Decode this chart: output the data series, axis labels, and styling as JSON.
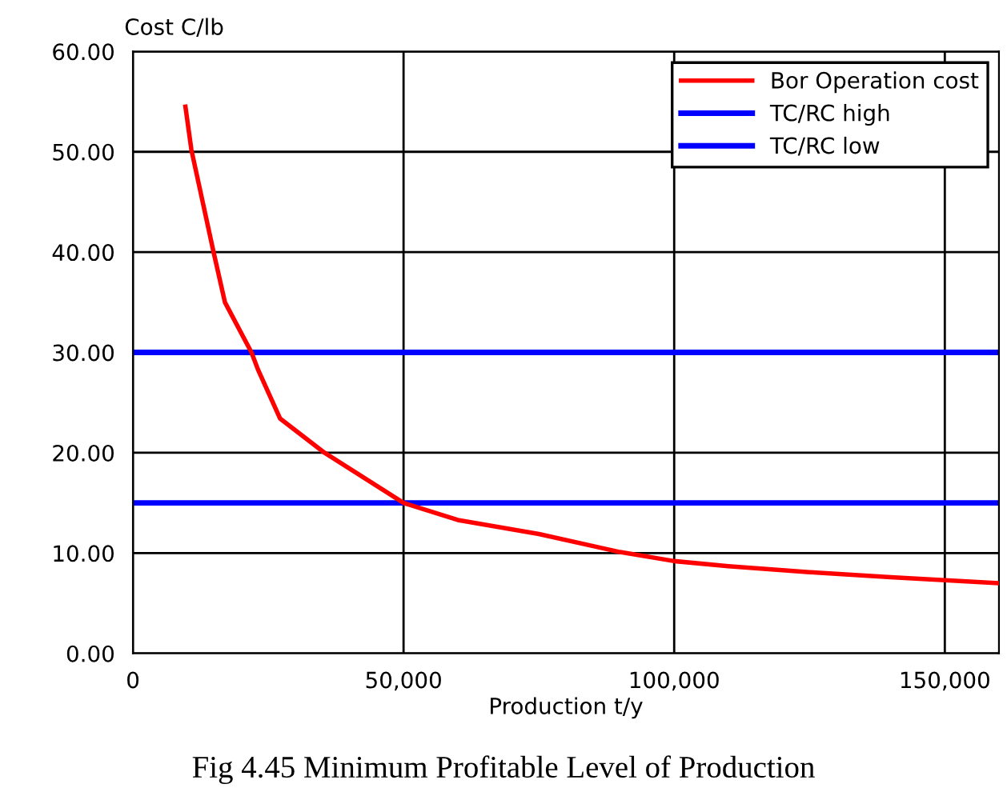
{
  "chart_data": {
    "type": "line",
    "ylabel": "Cost C/lb",
    "xlabel": "Production t/y",
    "annotations": [
      "Fig 4.45 Minimum Profitable Level of Production"
    ],
    "series": [
      {
        "name": "Bor Operation cost",
        "color": "#ff0000",
        "x": [
          9700,
          10800,
          14900,
          17000,
          21900,
          23100,
          27200,
          35400,
          50000,
          60000,
          75000,
          90000,
          100000,
          110000,
          125000,
          140000,
          150000,
          160000
        ],
        "values": [
          54.5,
          50.2,
          40,
          35,
          30,
          28.3,
          23.4,
          20,
          15,
          13.3,
          11.9,
          10.1,
          9.2,
          8.7,
          8.1,
          7.6,
          7.3,
          7.0
        ]
      }
    ],
    "ref_lines": [
      {
        "axis": "y",
        "value": 30,
        "label": "TC/RC high",
        "color": "#0000ff"
      },
      {
        "axis": "y",
        "value": 15,
        "label": "TC/RC low",
        "color": "#0000ff"
      }
    ],
    "xlim": [
      0,
      160000
    ],
    "xticks": [
      0,
      {
        "value": 50000,
        "label": "50,000"
      },
      {
        "value": 100000,
        "label": "100,000"
      },
      {
        "value": 150000,
        "label": "150,000"
      }
    ],
    "ylim": [
      0,
      60
    ],
    "yticks": [
      {
        "value": 0,
        "label": "0.00"
      },
      {
        "value": 10,
        "label": "10.00"
      },
      {
        "value": 20,
        "label": "20.00"
      },
      {
        "value": 30,
        "label": "30.00"
      },
      {
        "value": 40,
        "label": "40.00"
      },
      {
        "value": 50,
        "label": "50.00"
      },
      {
        "value": 60,
        "label": "60.00"
      }
    ],
    "grid": true,
    "legend": "top right",
    "marker": "none",
    "line_style": "solid"
  }
}
